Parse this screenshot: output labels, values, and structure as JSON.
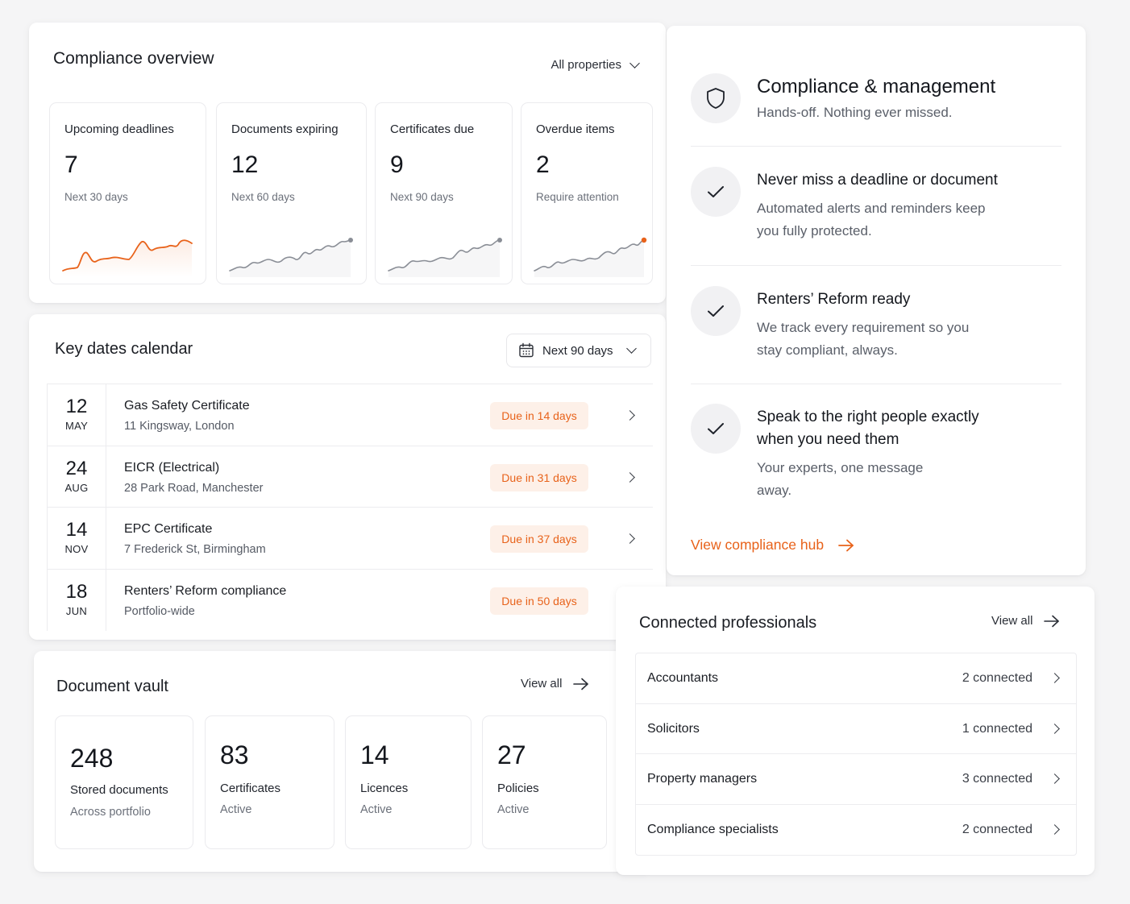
{
  "overview": {
    "title": "Compliance overview",
    "filter": "All properties",
    "stats": [
      {
        "label": "Upcoming deadlines",
        "value": "7",
        "sub": "Next 30 days"
      },
      {
        "label": "Documents expiring",
        "value": "12",
        "sub": "Next 60 days"
      },
      {
        "label": "Certificates due",
        "value": "9",
        "sub": "Next 90 days"
      },
      {
        "label": "Overdue items",
        "value": "2",
        "sub": "Require attention"
      }
    ]
  },
  "calendar": {
    "title": "Key dates calendar",
    "range": "Next 90 days",
    "rows": [
      {
        "day": "12",
        "month": "MAY",
        "name": "Gas Safety Certificate",
        "location": "11 Kingsway, London",
        "badge": "Due in 14 days"
      },
      {
        "day": "24",
        "month": "AUG",
        "name": "EICR (Electrical)",
        "location": "28 Park Road, Manchester",
        "badge": "Due in 31 days"
      },
      {
        "day": "14",
        "month": "NOV",
        "name": "EPC Certificate",
        "location": "7 Frederick St, Birmingham",
        "badge": "Due in 37 days"
      },
      {
        "day": "18",
        "month": "JUN",
        "name": "Renters’ Reform compliance",
        "location": "Portfolio-wide",
        "badge": "Due in 50 days"
      }
    ]
  },
  "vault": {
    "title": "Document vault",
    "view_all": "View all",
    "boxes": [
      {
        "value": "248",
        "label": "Stored documents",
        "sub": "Across portfolio"
      },
      {
        "value": "83",
        "label": "Certificates",
        "sub": "Active"
      },
      {
        "value": "14",
        "label": "Licences",
        "sub": "Active"
      },
      {
        "value": "27",
        "label": "Policies",
        "sub": "Active"
      }
    ]
  },
  "management": {
    "title": "Compliance & management",
    "subtitle": "Hands-off. Nothing ever missed.",
    "features": [
      {
        "title": "Never miss a deadline or document",
        "desc": "Automated alerts and reminders keep you fully protected."
      },
      {
        "title": "Renters’ Reform ready",
        "desc": "We track every requirement so you stay compliant, always."
      },
      {
        "title": "Speak to the right people exactly when you need them",
        "desc": "Your experts, one message away."
      }
    ],
    "hub_link": "View compliance hub"
  },
  "professionals": {
    "title": "Connected professionals",
    "view_all": "View all",
    "rows": [
      {
        "name": "Accountants",
        "count": "2 connected"
      },
      {
        "name": "Solicitors",
        "count": "1 connected"
      },
      {
        "name": "Property managers",
        "count": "3 connected"
      },
      {
        "name": "Compliance specialists",
        "count": "2 connected"
      }
    ]
  },
  "colors": {
    "accent": "#e8621a",
    "badge_bg": "#fdf0e8",
    "sparkline_gray": "#8a8e96"
  },
  "icons": [
    "chevron-down-icon",
    "calendar-icon",
    "chevron-right-icon",
    "arrow-right-icon",
    "shield-icon",
    "check-icon"
  ]
}
